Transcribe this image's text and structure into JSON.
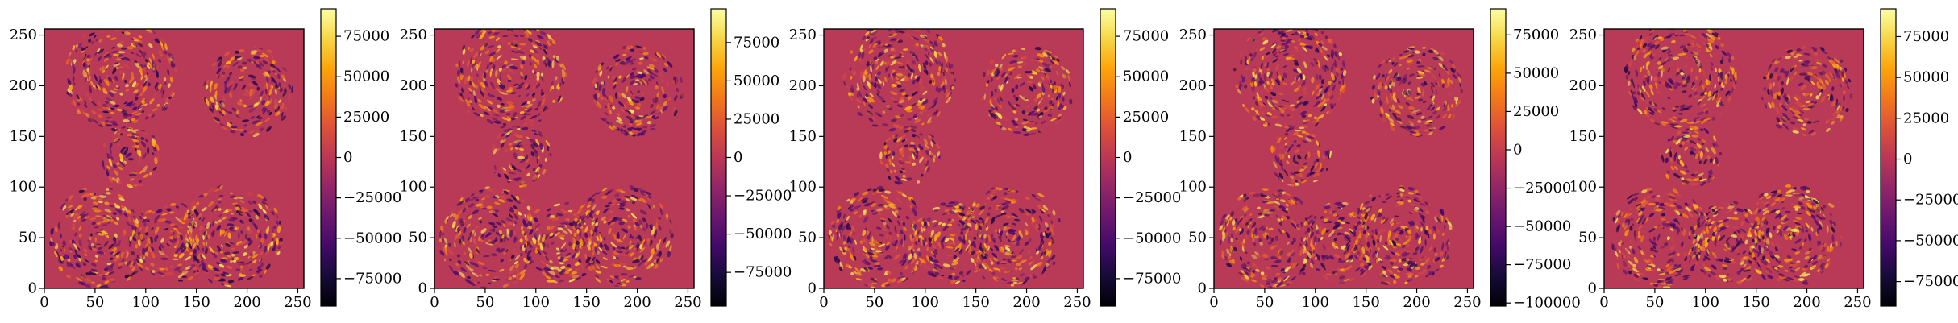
{
  "chart_data": [
    {
      "type": "heatmap",
      "xlim": [
        0,
        256
      ],
      "ylim": [
        0,
        256
      ],
      "xticks": [
        0,
        50,
        100,
        150,
        200,
        250
      ],
      "yticks": [
        0,
        50,
        100,
        150,
        200,
        250
      ],
      "colormap": "inferno",
      "colorbar": {
        "vmin": -92000,
        "vmax": 92000,
        "ticks": [
          -75000,
          -50000,
          -25000,
          0,
          25000,
          50000,
          75000
        ]
      },
      "blobs": [
        {
          "cx": 75,
          "cy": 210,
          "r": 55
        },
        {
          "cx": 200,
          "cy": 195,
          "r": 45
        },
        {
          "cx": 85,
          "cy": 130,
          "r": 30
        },
        {
          "cx": 55,
          "cy": 50,
          "r": 50
        },
        {
          "cx": 125,
          "cy": 45,
          "r": 40
        },
        {
          "cx": 185,
          "cy": 52,
          "r": 50
        }
      ]
    },
    {
      "type": "heatmap",
      "xlim": [
        0,
        256
      ],
      "ylim": [
        0,
        256
      ],
      "xticks": [
        0,
        50,
        100,
        150,
        200,
        250
      ],
      "yticks": [
        0,
        50,
        100,
        150,
        200,
        250
      ],
      "colormap": "inferno",
      "colorbar": {
        "vmin": -97000,
        "vmax": 97000,
        "ticks": [
          -75000,
          -50000,
          -25000,
          0,
          25000,
          50000,
          75000
        ]
      },
      "blobs": [
        {
          "cx": 75,
          "cy": 210,
          "r": 55
        },
        {
          "cx": 200,
          "cy": 195,
          "r": 45
        },
        {
          "cx": 85,
          "cy": 130,
          "r": 30
        },
        {
          "cx": 55,
          "cy": 50,
          "r": 50
        },
        {
          "cx": 125,
          "cy": 45,
          "r": 40
        },
        {
          "cx": 185,
          "cy": 52,
          "r": 50
        }
      ]
    },
    {
      "type": "heatmap",
      "xlim": [
        0,
        256
      ],
      "ylim": [
        0,
        256
      ],
      "xticks": [
        0,
        50,
        100,
        150,
        200,
        250
      ],
      "yticks": [
        0,
        50,
        100,
        150,
        200,
        250
      ],
      "colormap": "inferno",
      "colorbar": {
        "vmin": -92000,
        "vmax": 92000,
        "ticks": [
          -75000,
          -50000,
          -25000,
          0,
          25000,
          50000,
          75000
        ]
      },
      "blobs": [
        {
          "cx": 75,
          "cy": 210,
          "r": 55
        },
        {
          "cx": 200,
          "cy": 195,
          "r": 45
        },
        {
          "cx": 85,
          "cy": 130,
          "r": 30
        },
        {
          "cx": 55,
          "cy": 50,
          "r": 50
        },
        {
          "cx": 125,
          "cy": 45,
          "r": 40
        },
        {
          "cx": 185,
          "cy": 52,
          "r": 50
        }
      ]
    },
    {
      "type": "heatmap",
      "xlim": [
        0,
        256
      ],
      "ylim": [
        0,
        256
      ],
      "xticks": [
        0,
        50,
        100,
        150,
        200,
        250
      ],
      "yticks": [
        0,
        50,
        100,
        150,
        200,
        250
      ],
      "colormap": "inferno",
      "colorbar": {
        "vmin": -102000,
        "vmax": 92000,
        "ticks": [
          -100000,
          -75000,
          -50000,
          -25000,
          0,
          25000,
          50000,
          75000
        ]
      },
      "blobs": [
        {
          "cx": 75,
          "cy": 210,
          "r": 55
        },
        {
          "cx": 200,
          "cy": 195,
          "r": 45
        },
        {
          "cx": 85,
          "cy": 130,
          "r": 30
        },
        {
          "cx": 55,
          "cy": 50,
          "r": 50
        },
        {
          "cx": 125,
          "cy": 45,
          "r": 40
        },
        {
          "cx": 185,
          "cy": 52,
          "r": 50
        }
      ]
    },
    {
      "type": "heatmap",
      "xlim": [
        0,
        256
      ],
      "ylim": [
        0,
        256
      ],
      "xticks": [
        0,
        50,
        100,
        150,
        200,
        250
      ],
      "yticks": [
        0,
        50,
        100,
        150,
        200,
        250
      ],
      "colormap": "inferno",
      "colorbar": {
        "vmin": -90000,
        "vmax": 92000,
        "ticks": [
          -75000,
          -50000,
          -25000,
          0,
          25000,
          50000,
          75000
        ]
      },
      "blobs": [
        {
          "cx": 75,
          "cy": 210,
          "r": 55
        },
        {
          "cx": 200,
          "cy": 195,
          "r": 45
        },
        {
          "cx": 85,
          "cy": 130,
          "r": 30
        },
        {
          "cx": 55,
          "cy": 50,
          "r": 50
        },
        {
          "cx": 125,
          "cy": 45,
          "r": 40
        },
        {
          "cx": 185,
          "cy": 52,
          "r": 50
        }
      ]
    }
  ]
}
